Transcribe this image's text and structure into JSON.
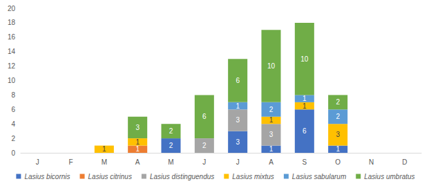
{
  "chart_data": {
    "type": "bar",
    "stacked": true,
    "data_labels": true,
    "grid": false,
    "legend": "bottom",
    "categories": [
      "J",
      "F",
      "M",
      "A",
      "M",
      "J",
      "J",
      "A",
      "S",
      "O",
      "N",
      "D"
    ],
    "ylim": [
      0,
      20
    ],
    "yticks": [
      0,
      2,
      4,
      6,
      8,
      10,
      12,
      14,
      16,
      18,
      20
    ],
    "series": [
      {
        "name": "Lasius bicornis",
        "color": "#4472c4",
        "values": [
          null,
          null,
          null,
          null,
          2,
          null,
          3,
          1,
          6,
          1,
          null,
          null
        ]
      },
      {
        "name": "Lasius citrinus",
        "color": "#ed7d31",
        "values": [
          null,
          null,
          null,
          1,
          null,
          null,
          null,
          null,
          null,
          null,
          null,
          null
        ]
      },
      {
        "name": "Lasius distinguendus",
        "color": "#a5a5a5",
        "values": [
          null,
          null,
          null,
          null,
          null,
          2,
          3,
          3,
          null,
          null,
          null,
          null
        ]
      },
      {
        "name": "Lasius mixtus",
        "color": "#ffc000",
        "values": [
          null,
          null,
          1,
          1,
          null,
          null,
          null,
          1,
          1,
          3,
          null,
          null
        ]
      },
      {
        "name": "Lasius sabularum",
        "color": "#5b9bd5",
        "values": [
          null,
          null,
          null,
          null,
          null,
          null,
          1,
          2,
          1,
          2,
          null,
          null
        ]
      },
      {
        "name": "Lasius umbratus",
        "color": "#70ad47",
        "values": [
          null,
          null,
          null,
          3,
          2,
          6,
          6,
          10,
          10,
          2,
          null,
          null
        ]
      }
    ]
  }
}
